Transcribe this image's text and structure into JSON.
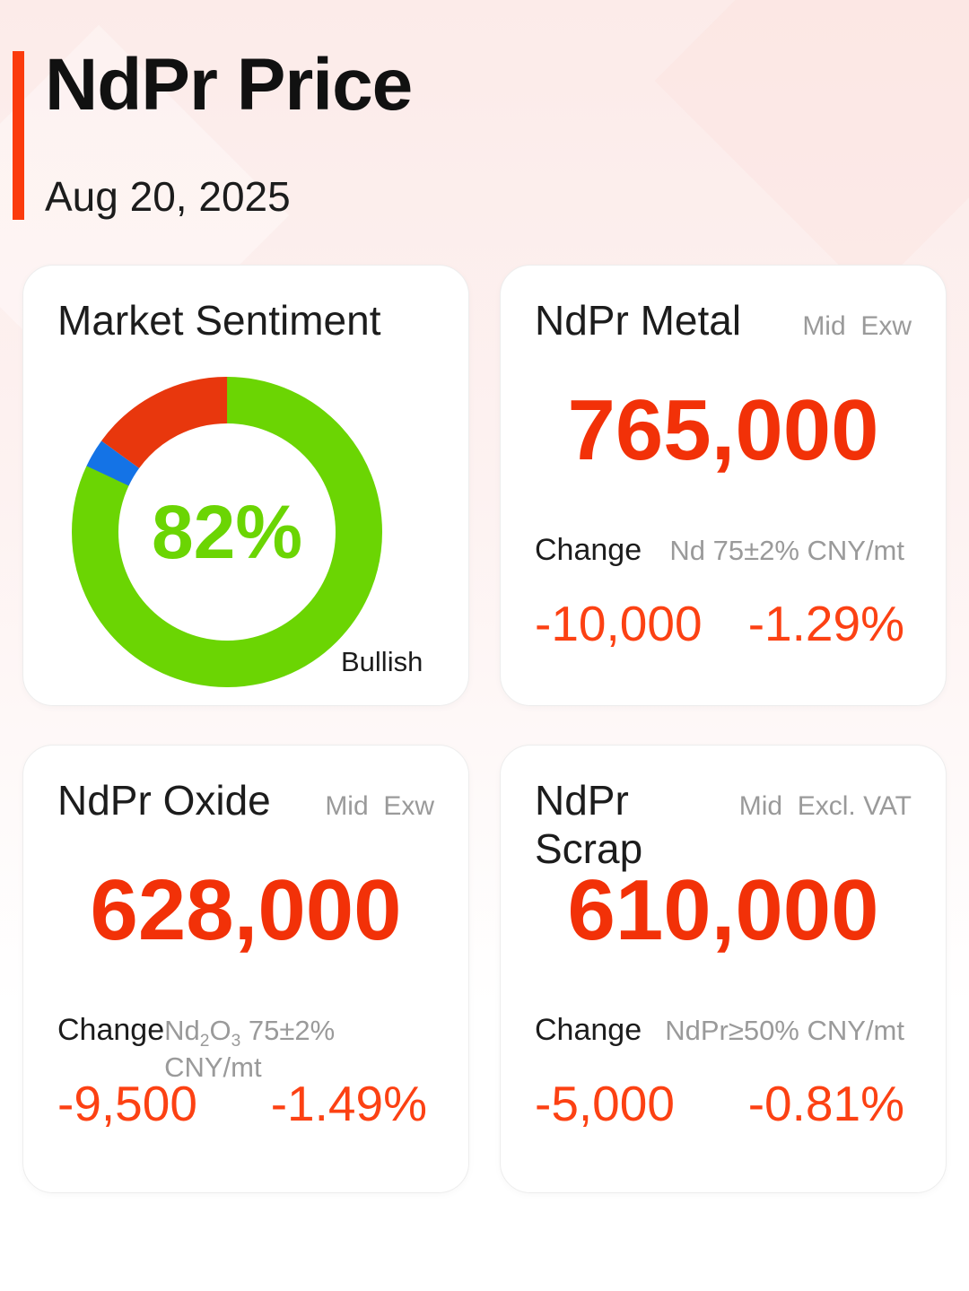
{
  "header": {
    "title": "NdPr Price",
    "date": "Aug 20, 2025"
  },
  "sentiment": {
    "title": "Market Sentiment",
    "center_label": "82%",
    "legend_label": "Bullish"
  },
  "chart_data": {
    "type": "pie",
    "donut": true,
    "title": "Market Sentiment",
    "center_label": "82%",
    "annotation": "Bullish",
    "legend_position": "none",
    "segments": [
      {
        "label": "Bullish",
        "value": 82,
        "color": "#6bd503"
      },
      {
        "label": "",
        "value": 3,
        "color": "#1473e6"
      },
      {
        "label": "",
        "value": 15,
        "color": "#e8370d"
      }
    ]
  },
  "cards": [
    {
      "title": "NdPr Metal",
      "spec": "Mid  Exw",
      "price": "765,000",
      "change_label": "Change",
      "unit_parts": [
        "Nd 75±2% CNY/mt"
      ],
      "change_abs": "-10,000",
      "change_pct": "-1.29%"
    },
    {
      "title": "NdPr Oxide",
      "spec": "Mid  Exw",
      "price": "628,000",
      "change_label": "Change",
      "unit_parts": [
        "Nd",
        {
          "sub": "2"
        },
        "O",
        {
          "sub": "3"
        },
        " 75±2% CNY/mt"
      ],
      "change_abs": "-9,500",
      "change_pct": "-1.49%"
    },
    {
      "title": "NdPr Scrap",
      "spec": "Mid  Excl. VAT",
      "price": "610,000",
      "change_label": "Change",
      "unit_parts": [
        "NdPr≥50% CNY/mt"
      ],
      "change_abs": "-5,000",
      "change_pct": "-0.81%"
    }
  ],
  "colors": {
    "accent": "#fb3b0d",
    "price": "#f23108",
    "change": "#fc4113",
    "gray": "#9a9a9a",
    "green": "#6bd503",
    "blue": "#1473e6",
    "red": "#e8370d"
  }
}
